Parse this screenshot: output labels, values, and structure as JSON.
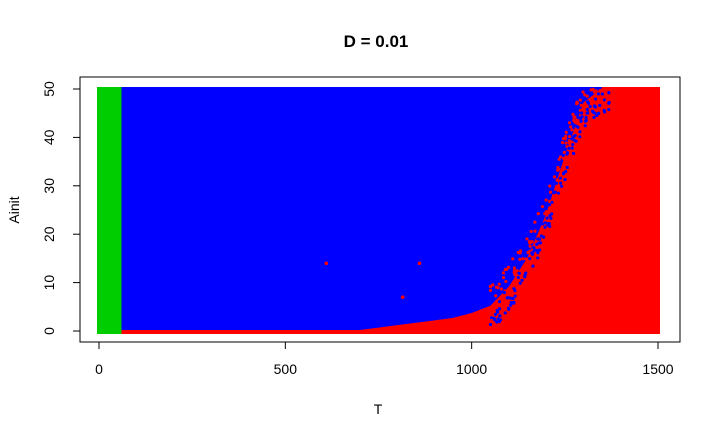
{
  "chart_data": {
    "type": "scatter",
    "title": "D =  0.01",
    "xlabel": "T",
    "ylabel": "Ainit",
    "xlim": [
      0,
      1500
    ],
    "ylim": [
      0,
      50
    ],
    "xticks": [
      0,
      500,
      1000,
      1500
    ],
    "yticks": [
      0,
      10,
      20,
      30,
      40,
      50
    ],
    "xtick_labels": [
      "0",
      "500",
      "1000",
      "1500"
    ],
    "ytick_labels": [
      "0",
      "10",
      "20",
      "30",
      "40",
      "50"
    ],
    "grid": false,
    "legend": "none",
    "colors": {
      "green": "#00cd00",
      "blue": "#0000ff",
      "red": "#ff0000"
    },
    "regions": [
      {
        "color": "green",
        "x_range": [
          0,
          55
        ],
        "y_range": [
          0,
          50
        ]
      },
      {
        "color": "red",
        "description_boundary": "y = 0 for T >= 55"
      },
      {
        "color": "blue",
        "x_range": [
          55,
          1500
        ],
        "y_range": [
          0.5,
          50
        ]
      },
      {
        "color": "red",
        "boundary_x": [
          700,
          750,
          800,
          850,
          900,
          950,
          1000,
          1050,
          1100,
          1150,
          1200,
          1250,
          1300,
          1350
        ],
        "boundary_y": [
          0,
          0.5,
          1,
          1.5,
          2,
          2.5,
          3.5,
          5,
          9,
          15,
          24,
          36,
          47,
          50
        ]
      }
    ],
    "isolated_points": [
      {
        "x": 610,
        "y": 14,
        "color": "red"
      },
      {
        "x": 860,
        "y": 14,
        "color": "red"
      },
      {
        "x": 815,
        "y": 7,
        "color": "red"
      }
    ]
  }
}
